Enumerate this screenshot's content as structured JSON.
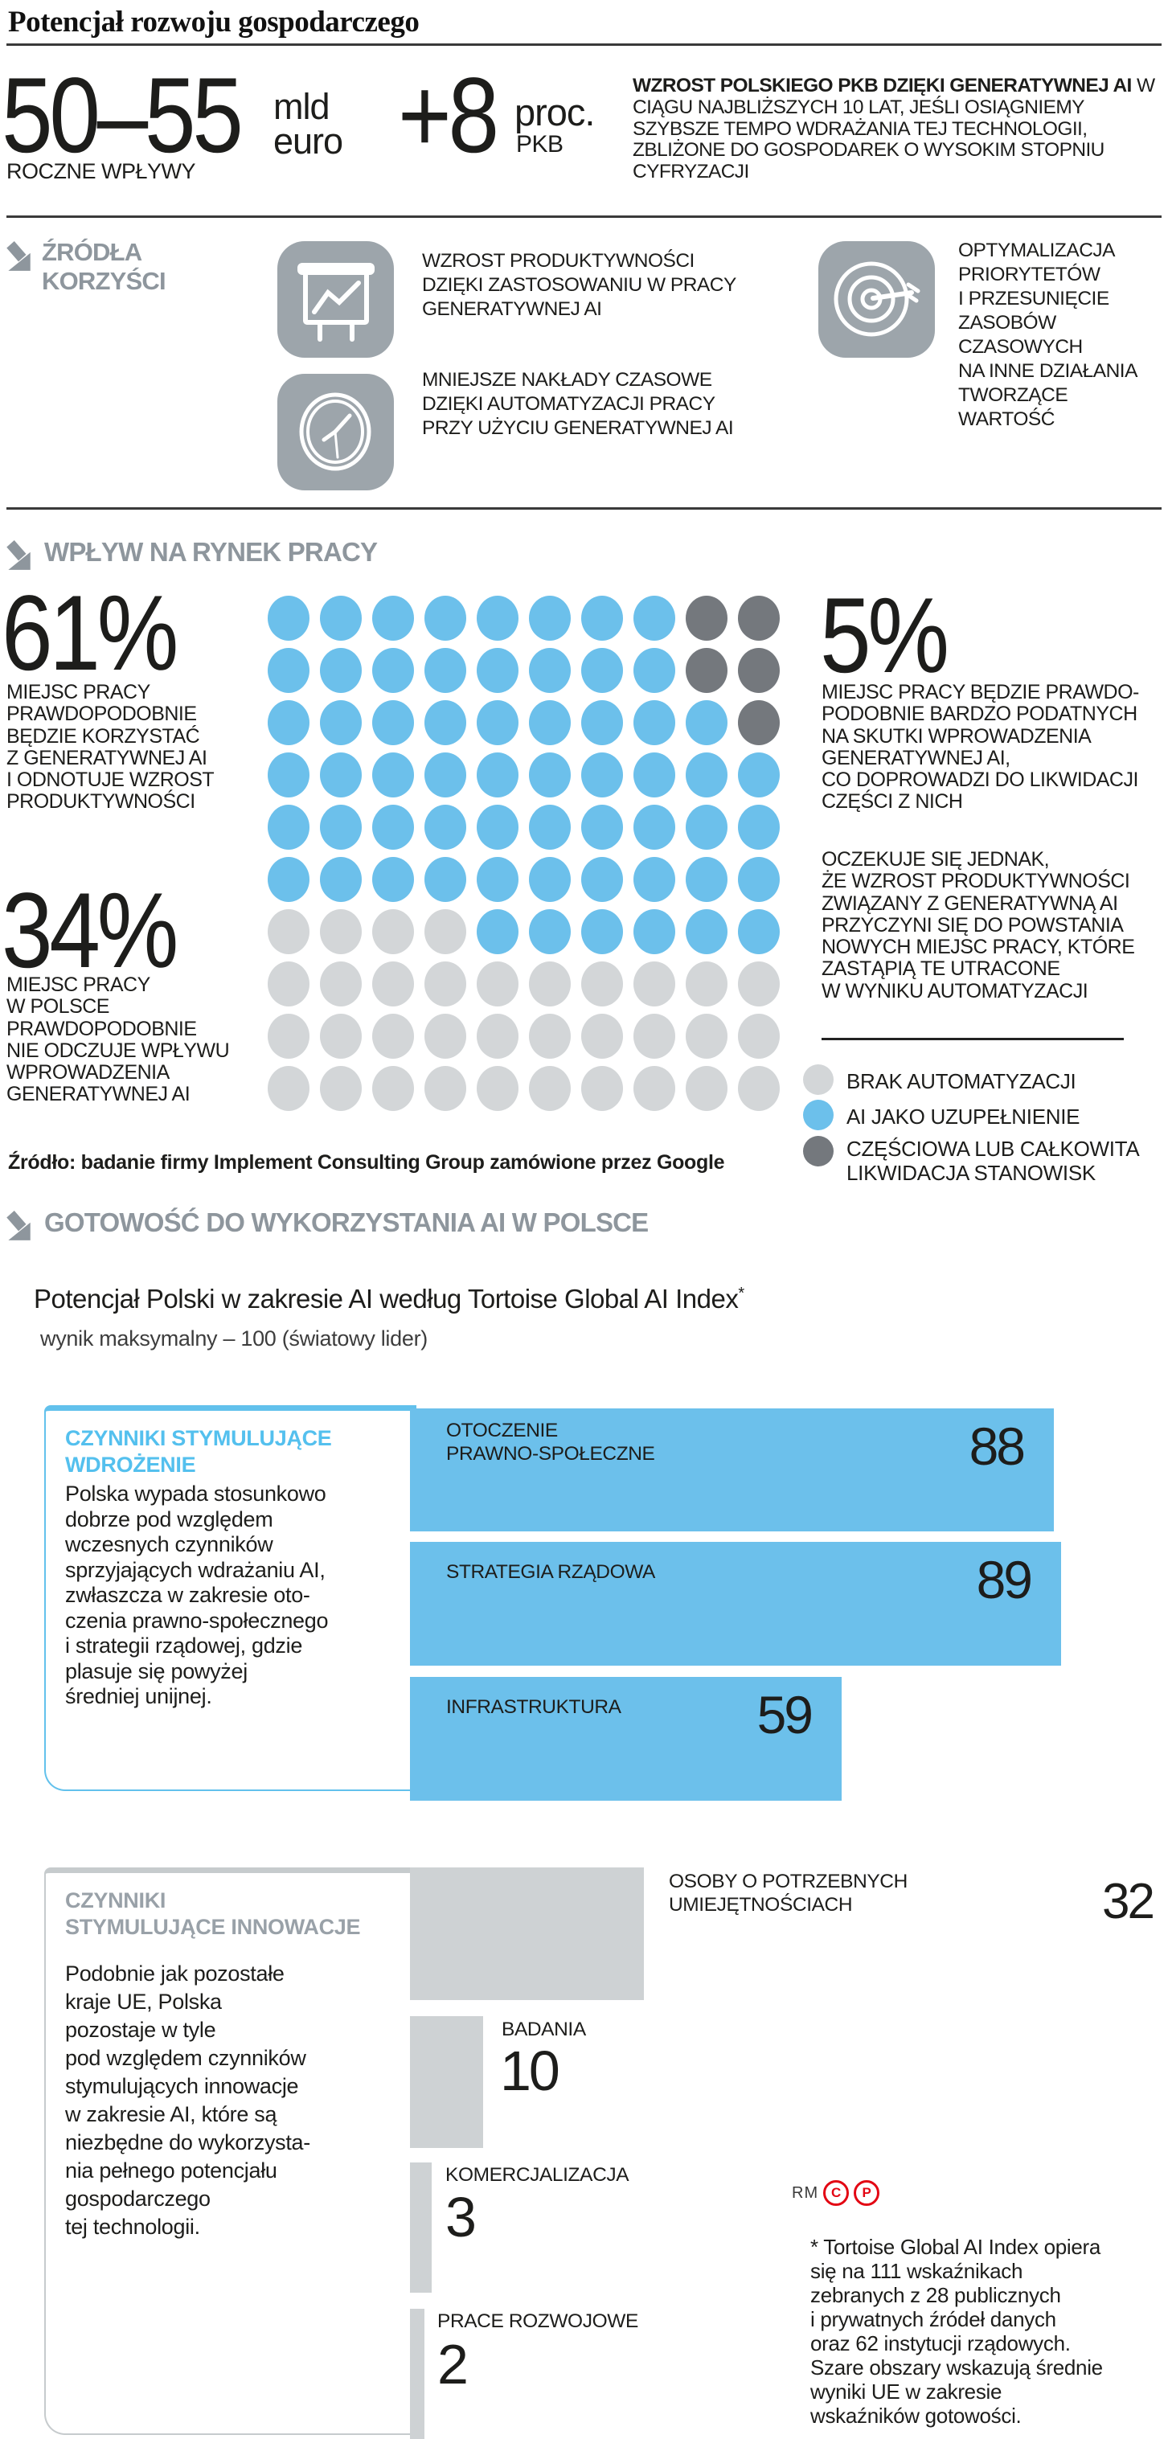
{
  "page": {
    "title": "Potencjał rozwoju gospodarczego"
  },
  "colors": {
    "blue": "#6CC0EB",
    "light_grey": "#D3D6D8",
    "dark_grey": "#74787D",
    "bar_grey": "#CED2D4",
    "icon_grey": "#9DA5AB",
    "header_grey": "#8E969D",
    "red": "#E30613"
  },
  "stats": {
    "annual_value": "50–55",
    "annual_unit": "mld\neuro",
    "annual_label": "ROCZNE WPŁYWY",
    "gdp_value": "+8",
    "gdp_unit": "proc.",
    "gdp_sub": "PKB",
    "description_bold": "WZROST POLSKIEGO PKB DZIĘKI GENERATYWNEJ AI",
    "description_rest": " W CIĄGU NAJBLIŻSZYCH 10 LAT, JEŚLI OSIĄGNIEMY SZYBSZE TEMPO WDRAŻANIA TEJ TECHNOLOGII, ZBLIŻONE DO GOSPODAREK O WYSOKIM STOPNIU CYFRYZACJI"
  },
  "benefits": {
    "header": "ŹRÓDŁA\nKORZYŚCI",
    "items": [
      {
        "icon": "presentation-chart-icon",
        "text": "WZROST PRODUKTYWNOŚCI\nDZIĘKI ZASTOSOWANIU W PRACY\nGENERATYWNEJ AI"
      },
      {
        "icon": "clock-icon",
        "text": "MNIEJSZE NAKŁADY CZASOWE\nDZIĘKI AUTOMATYZACJI PRACY\nPRZY UŻYCIU GENERATYWNEJ AI"
      },
      {
        "icon": "target-icon",
        "text": "OPTYMALIZACJA\nPRIORYTETÓW\nI PRZESUNIĘCIE\nZASOBÓW\nCZASOWYCH\nNA INNE DZIAŁANIA\nTWORZĄCE\nWARTOŚĆ"
      }
    ]
  },
  "labor": {
    "header": "WPŁYW NA RYNEK PRACY",
    "stat61": {
      "value": "61%",
      "text": "MIEJSC PRACY\nPRAWDOPODOBNIE\nBĘDZIE KORZYSTAĆ\nZ GENERATYWNEJ AI\nI ODNOTUJE WZROST\nPRODUKTYWNOŚCI"
    },
    "stat34": {
      "value": "34%",
      "text": "MIEJSC PRACY\nW POLSCE\nPRAWDOPODOBNIE\nNIE ODCZUJE WPŁYWU\nWPROWADZENIA\nGENERATYWNEJ AI"
    },
    "stat5": {
      "value": "5%",
      "text": "MIEJSC PRACY BĘDZIE PRAWDO-\nPODOBNIE BARDZO PODATNYCH\nNA SKUTKI WPROWADZENIA\nGENERATYWNEJ AI,\nCO DOPROWADZI DO LIKWIDACJI\nCZĘŚCI Z NICH"
    },
    "expectation": "OCZEKUJE SIĘ JEDNAK,\nŻE WZROST PRODUKTYWNOŚCI\nZWIĄZANY Z GENERATYWNĄ AI\nPRZYCZYNI SIĘ DO POWSTANIA\nNOWYCH MIEJSC PRACY, KTÓRE\nZASTĄPIĄ TE UTRACONE\nW WYNIKU AUTOMATYZACJI",
    "legend": [
      {
        "key": "light",
        "label": "BRAK AUTOMATYZACJI"
      },
      {
        "key": "blue",
        "label": "AI JAKO UZUPEŁNIENIE"
      },
      {
        "key": "dark",
        "label": "CZĘŚCIOWA LUB CAŁKOWITA\nLIKWIDACJA STANOWISK"
      }
    ],
    "source": "Źródło: badanie firmy Implement Consulting Group zamówione przez Google"
  },
  "readiness": {
    "header": "GOTOWOŚĆ DO WYKORZYSTANIA AI W POLSCE",
    "chart_title": "Potencjał Polski w zakresie AI według Tortoise Global AI Index",
    "chart_title_mark": "*",
    "chart_subtitle": "wynik maksymalny – 100 (światowy lider)",
    "box_adoption": {
      "title": "CZYNNIKI STYMULUJĄCE\nWDROŻENIE",
      "text": "Polska wypada stosunkowo\ndobrze pod względem\nwczesnych czynników\nsprzyjających wdrażaniu AI,\nzwłaszcza w zakresie oto-\nczenia prawno-społecznego\ni strategii rządowej, gdzie\nplasuje się powyżej\nśredniej unijnej."
    },
    "box_innovation": {
      "title": "CZYNNIKI\nSTYMULUJĄCE INNOWACJE",
      "text": "Podobnie jak pozostałe\nkraje UE, Polska\npozostaje w tyle\npod względem czynników\nstymulujących innowacje\nw zakresie AI, które są\nniezbędne do wykorzysta-\nnia pełnego potencjału\ngospodarczego\ntej technologii."
    },
    "footnote": "* Tortoise Global AI Index opiera\nsię na 111 wskaźnikach\nzebranych z 28 publicznych\ni prywatnych źródeł danych\noraz 62 instytucji rządowych.\nSzare obszary wskazują średnie\nwyniki UE w zakresie\nwskaźników gotowości.",
    "logo": {
      "text": "RM",
      "marks": [
        "C",
        "P"
      ]
    }
  },
  "chart_data": [
    {
      "type": "pictogram",
      "title": "WPŁYW NA RYNEK PRACY",
      "grid": {
        "rows": 10,
        "cols": 10
      },
      "rows": [
        "BBBBBBBBDD",
        "BBBBBBBBDD",
        "BBBBBBBBBD",
        "BBBBBBBBBB",
        "BBBBBBBBBB",
        "BBBBBBBBBB",
        "LLLLBBBBBB",
        "LLLLLLLLLL",
        "LLLLLLLLLL",
        "LLLLLLLLLL"
      ],
      "key": {
        "B": "AI JAKO UZUPEŁNIENIE",
        "L": "BRAK AUTOMATYZACJI",
        "D": "CZĘŚCIOWA LUB CAŁKOWITA LIKWIDACJA STANOWISK"
      },
      "values": {
        "AI JAKO UZUPEŁNIENIE": 61,
        "BRAK AUTOMATYZACJI": 34,
        "CZĘŚCIOWA LUB CAŁKOWITA LIKWIDACJA STANOWISK": 5
      }
    },
    {
      "type": "bar",
      "orientation": "horizontal",
      "title": "CZYNNIKI STYMULUJĄCE WDROŻENIE",
      "categories": [
        "OTOCZENIE\nPRAWNO-SPOŁECZNE",
        "STRATEGIA RZĄDOWA",
        "INFRASTRUKTURA"
      ],
      "values": [
        88,
        89,
        59
      ],
      "xlim": [
        0,
        100
      ]
    },
    {
      "type": "bar",
      "orientation": "horizontal",
      "title": "CZYNNIKI STYMULUJĄCE INNOWACJE",
      "categories": [
        "OSOBY O POTRZEBNYCH\nUMIEJĘTNOŚCIACH",
        "BADANIA",
        "KOMERCJALIZACJA",
        "PRACE ROZWOJOWE"
      ],
      "values": [
        32,
        10,
        3,
        2
      ],
      "xlim": [
        0,
        100
      ]
    }
  ]
}
